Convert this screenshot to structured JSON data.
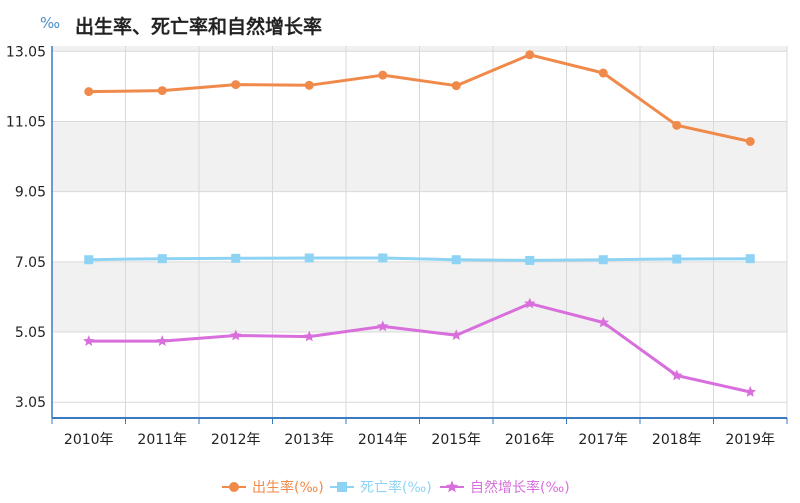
{
  "header": {
    "unit": "‰",
    "title": "出生率、死亡率和自然增长率"
  },
  "chart_data": {
    "type": "line",
    "title": "出生率、死亡率和自然增长率",
    "ylabel": "‰",
    "categories": [
      "2010年",
      "2011年",
      "2012年",
      "2013年",
      "2014年",
      "2015年",
      "2016年",
      "2017年",
      "2018年",
      "2019年"
    ],
    "yticks": [
      "3.05",
      "5.05",
      "7.05",
      "9.05",
      "11.05",
      "13.05"
    ],
    "ylim": [
      2.6,
      13.2
    ],
    "grid": true,
    "legend_position": "bottom",
    "series": [
      {
        "name": "出生率(‰)",
        "color": "#f08a4b",
        "marker": "circle",
        "values": [
          11.9,
          11.93,
          12.1,
          12.08,
          12.37,
          12.07,
          12.95,
          12.43,
          10.94,
          10.48
        ]
      },
      {
        "name": "死亡率(‰)",
        "color": "#8fd3f4",
        "marker": "square",
        "values": [
          7.11,
          7.14,
          7.15,
          7.16,
          7.16,
          7.11,
          7.09,
          7.11,
          7.13,
          7.14
        ]
      },
      {
        "name": "自然增长率(‰)",
        "color": "#d86fdc",
        "marker": "triangle",
        "values": [
          4.79,
          4.79,
          4.95,
          4.92,
          5.21,
          4.96,
          5.86,
          5.32,
          3.81,
          3.34
        ]
      }
    ]
  }
}
